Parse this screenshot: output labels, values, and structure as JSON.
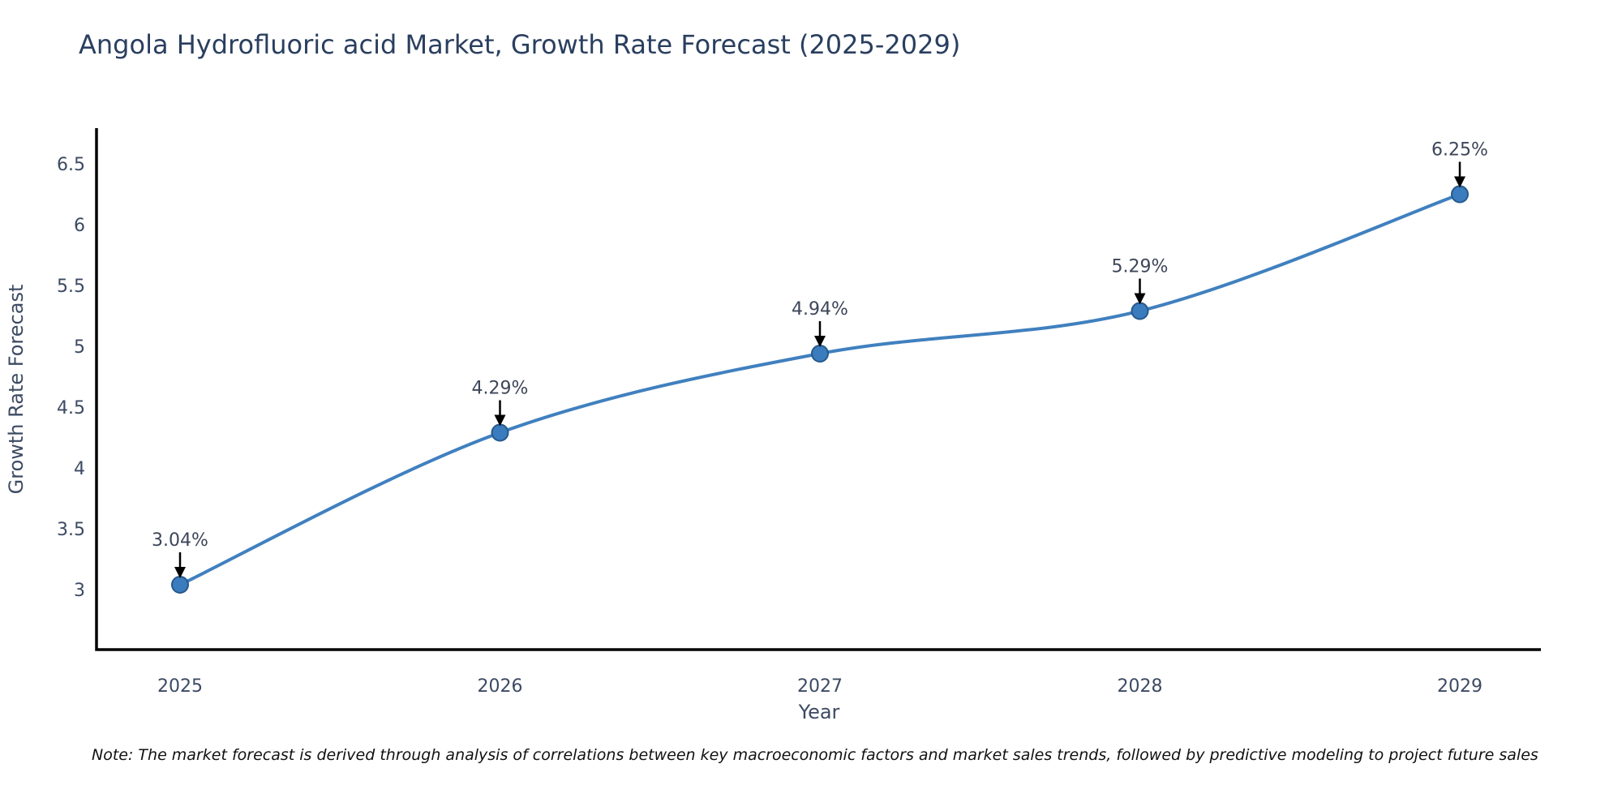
{
  "chart_data": {
    "type": "line",
    "title": "Angola Hydrofluoric acid Market, Growth Rate Forecast (2025-2029)",
    "xlabel": "Year",
    "ylabel": "Growth Rate Forecast",
    "x": [
      2025,
      2026,
      2027,
      2028,
      2029
    ],
    "series": [
      {
        "name": "Growth Rate Forecast",
        "values": [
          3.04,
          4.29,
          4.94,
          5.29,
          6.25
        ],
        "point_labels": [
          "3.04%",
          "4.29%",
          "4.94%",
          "5.29%",
          "6.25%"
        ]
      }
    ],
    "yticks": [
      3,
      3.5,
      4,
      4.5,
      5,
      5.5,
      6,
      6.5
    ],
    "ylim": [
      2.5,
      6.8
    ],
    "grid": false,
    "legend_position": "none",
    "line_smoothing": true,
    "colors": {
      "line": "#4080bf",
      "marker_fill": "#3a7cbe",
      "marker_edge": "#27598c",
      "axis": "#000000",
      "arrow": "#000000",
      "tick_text": "#3c4a63",
      "annotation_text": "#3d4659",
      "title_text": "#2a3f5f"
    }
  },
  "note": {
    "text": "Note: The market forecast is derived through analysis of correlations between key macroeconomic factors and market sales trends, followed by predictive modeling to project future sales"
  }
}
